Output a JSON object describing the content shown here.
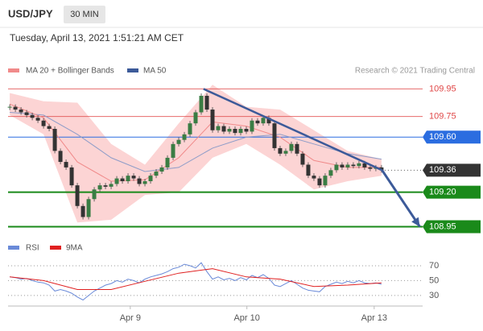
{
  "header": {
    "symbol": "USD/JPY",
    "timeframe": "30 MIN",
    "timestamp": "Tuesday, April 13, 2021 1:51:21 AM CET"
  },
  "chart_data": [
    {
      "type": "candlestick",
      "credit": "Research © 2021 Trading Central",
      "up_color": "#3a7d44",
      "down_color": "#333333",
      "values": [
        109.82,
        109.8,
        109.78,
        109.76,
        109.74,
        109.72,
        109.68,
        109.66,
        109.5,
        109.42,
        109.38,
        109.25,
        109.1,
        109.02,
        109.15,
        109.22,
        109.25,
        109.24,
        109.26,
        109.3,
        109.28,
        109.32,
        109.3,
        109.26,
        109.28,
        109.32,
        109.35,
        109.38,
        109.45,
        109.55,
        109.58,
        109.62,
        109.7,
        109.78,
        109.9,
        109.8,
        109.65,
        109.68,
        109.64,
        109.66,
        109.63,
        109.66,
        109.64,
        109.72,
        109.7,
        109.74,
        109.7,
        109.52,
        109.48,
        109.5,
        109.55,
        109.48,
        109.4,
        109.32,
        109.3,
        109.25,
        109.32,
        109.36,
        109.4,
        109.38,
        109.4,
        109.39,
        109.41,
        109.38,
        109.37,
        109.38,
        109.36
      ],
      "xlim": [
        -0.3,
        73.3
      ],
      "ylim": [
        108.9,
        110.04
      ],
      "overlay_x": [
        0,
        6,
        12,
        18,
        24,
        30,
        36,
        42,
        48,
        54,
        60,
        66
      ],
      "series": [
        {
          "name": "MA 20 + Bollinger Bands",
          "color": "#f08a8a",
          "band_color": "#fcd4d4",
          "values": [
            109.84,
            109.74,
            109.42,
            109.28,
            109.29,
            109.45,
            109.71,
            109.68,
            109.6,
            109.43,
            109.38,
            109.38
          ],
          "upper": [
            109.92,
            109.86,
            109.85,
            109.55,
            109.4,
            109.7,
            109.98,
            109.82,
            109.8,
            109.65,
            109.5,
            109.44
          ],
          "lower": [
            109.76,
            109.62,
            108.98,
            109.0,
            109.18,
            109.2,
            109.45,
            109.55,
            109.4,
            109.22,
            109.28,
            109.32
          ]
        },
        {
          "name": "MA 50",
          "color": "#3c5a99",
          "line_color": "#8e9cc8",
          "values": [
            109.78,
            109.76,
            109.62,
            109.45,
            109.35,
            109.38,
            109.52,
            109.6,
            109.62,
            109.55,
            109.48,
            109.44
          ]
        }
      ],
      "levels": [
        {
          "value": 109.95,
          "color": "#e04848",
          "style": "text"
        },
        {
          "value": 109.75,
          "color": "#e04848",
          "style": "text"
        },
        {
          "value": 109.6,
          "label": "109.60",
          "color": "#2b6de0",
          "style": "box"
        },
        {
          "value": 109.36,
          "color": "#333333",
          "style": "current"
        },
        {
          "value": 109.2,
          "label": "109.20",
          "color": "#1a8a1a",
          "style": "box"
        },
        {
          "value": 108.95,
          "color": "#1a8a1a",
          "style": "box"
        }
      ],
      "trendline": {
        "x": [
          34.4,
          66.1
        ],
        "values": [
          109.95,
          109.36
        ],
        "color": "#3c5a99"
      },
      "arrow": {
        "x": [
          66.1,
          72.8
        ],
        "values": [
          109.36,
          108.95
        ],
        "color": "#3c5a99"
      }
    },
    {
      "type": "line",
      "ylim": [
        18,
        84
      ],
      "yticks": [
        30,
        50,
        70
      ],
      "xlim": [
        -0.3,
        73.3
      ],
      "xticks": [
        {
          "value": 21.4,
          "label": "Apr 9"
        },
        {
          "value": 42.1,
          "label": "Apr 10"
        },
        {
          "value": 64.7,
          "label": "Apr 13"
        }
      ],
      "series": [
        {
          "name": "RSI",
          "color": "#6a8ad8",
          "values": [
            55,
            54,
            52,
            53,
            50,
            48,
            47,
            44,
            36,
            38,
            36,
            33,
            28,
            24,
            30,
            36,
            40,
            44,
            46,
            50,
            48,
            52,
            50,
            47,
            52,
            55,
            57,
            59,
            62,
            66,
            68,
            72,
            70,
            67,
            74,
            62,
            52,
            55,
            51,
            53,
            50,
            54,
            51,
            57,
            54,
            58,
            53,
            44,
            42,
            46,
            50,
            45,
            40,
            37,
            36,
            35,
            42,
            45,
            48,
            46,
            49,
            47,
            50,
            47,
            46,
            47,
            45
          ]
        },
        {
          "name": "9MA",
          "color": "#e02020",
          "x": [
            0,
            6,
            12,
            18,
            24,
            30,
            36,
            42,
            48,
            54,
            60,
            66
          ],
          "values": [
            55,
            50,
            38,
            38,
            49,
            60,
            66,
            55,
            52,
            42,
            44,
            47
          ]
        }
      ]
    }
  ]
}
